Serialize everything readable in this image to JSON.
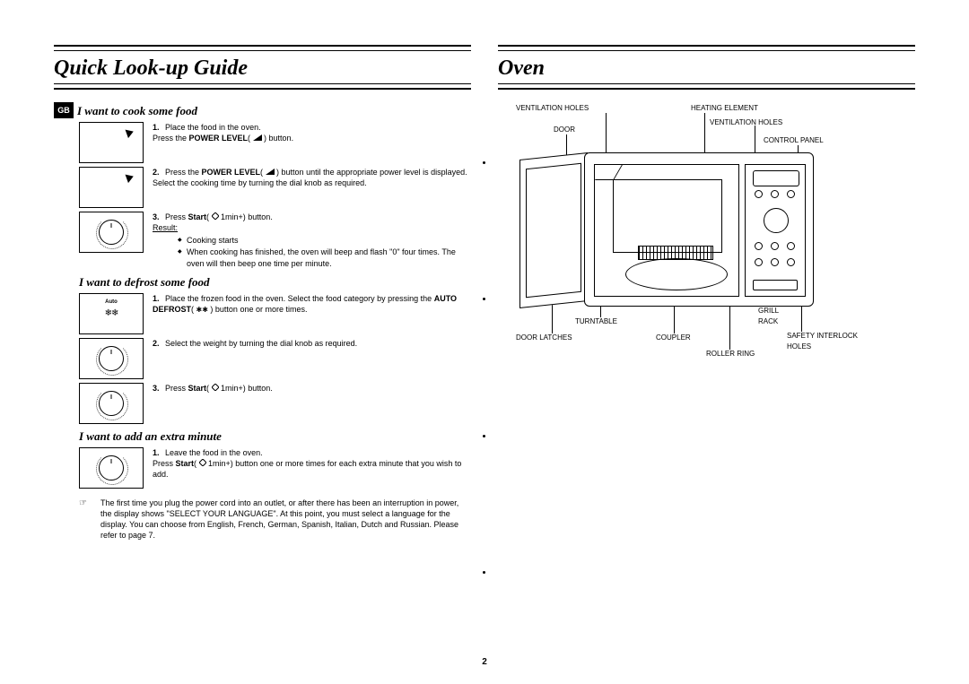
{
  "page_number": "2",
  "left": {
    "title": "Quick Look-up Guide",
    "lang_tag": "GB",
    "sec1": {
      "heading": "I want to cook some food",
      "steps": [
        {
          "n": "1.",
          "text": "Place the food in the oven.<br>Press the <b>POWER LEVEL</b>( <svg width='10' height='7'><polygon points='0,7 10,7 10,0' fill='#000'/></svg> ) button."
        },
        {
          "n": "2.",
          "text": "Press the <b>POWER LEVEL</b>( <svg width='10' height='7'><polygon points='0,7 10,7 10,0' fill='#000'/></svg> ) button until the appropriate power level is displayed.<br>Select the cooking time by turning the dial knob as required."
        },
        {
          "n": "3.",
          "text": "Press <b>Start</b>( <svg width='8' height='8'><polygon points='4,0 8,4 4,8 0,4' fill='none' stroke='#000' stroke-width='1'/></svg> 1min+) button.<br><span class='underline'>Result:</span>",
          "bullets": [
            "Cooking starts",
            "When cooking has finished, the oven will beep and flash \"0\" four times. The oven will then beep one time per minute."
          ]
        }
      ]
    },
    "sec2": {
      "heading": "I want to defrost some food",
      "steps": [
        {
          "n": "1.",
          "text": "Place the frozen food in the oven. Select the food category by pressing the <b>AUTO DEFROST</b>( <span style='font-size:8px'>✱✱</span> ) button one or more times."
        },
        {
          "n": "2.",
          "text": "Select the weight by turning the dial knob as required."
        },
        {
          "n": "3.",
          "text": "Press <b>Start</b>( <svg width='8' height='8'><polygon points='4,0 8,4 4,8 0,4' fill='none' stroke='#000' stroke-width='1'/></svg> 1min+) button."
        }
      ]
    },
    "sec3": {
      "heading": "I want to add an extra minute",
      "steps": [
        {
          "n": "1.",
          "text": "Leave the food in the oven.<br>Press <b>Start</b>( <svg width='8' height='8'><polygon points='4,0 8,4 4,8 0,4' fill='none' stroke='#000' stroke-width='1'/></svg> 1min+) button one or more times for each extra minute that you wish to add."
        }
      ]
    },
    "note": "The first time you plug the power cord into an outlet, or after there has been an interruption in power, the display shows \"SELECT YOUR LANGUAGE\". At this point, you must select a language for the display. You can choose from English, French, German, Spanish, Italian, Dutch and Russian. Please refer to page 7."
  },
  "right": {
    "title": "Oven",
    "labels": {
      "vent1": "VENTILATION HOLES",
      "heat": "HEATING ELEMENT",
      "vent2": "VENTILATION HOLES",
      "door": "DOOR",
      "cpanel": "CONTROL PANEL",
      "turntable": "TURNTABLE",
      "latches": "DOOR LATCHES",
      "coupler": "COUPLER",
      "roller": "ROLLER RING",
      "grill": "GRILL",
      "rack": "RACK",
      "safety": "SAFETY INTERLOCK",
      "holes": "HOLES"
    }
  }
}
